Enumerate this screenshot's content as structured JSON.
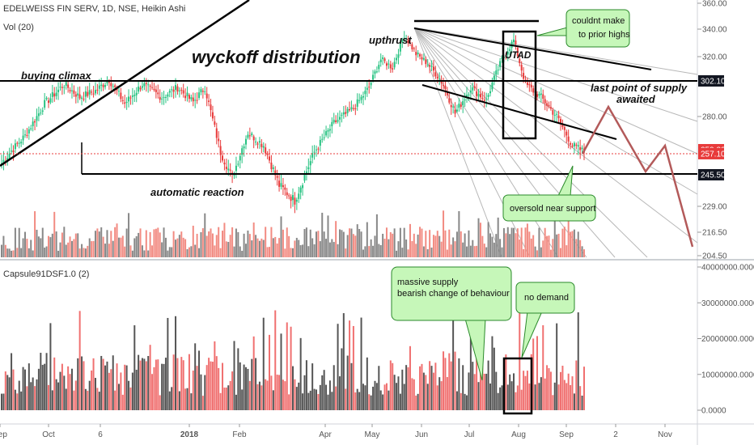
{
  "header": {
    "main_title": "EDELWEISS FIN SERV, 1D, NSE, Heikin Ashi",
    "volume_label": "Vol (20)",
    "indicator_label": "Capsule91DSF1.0 (2)"
  },
  "chart_data": {
    "type": "candlestick",
    "title": "EDELWEISS FIN SERV, 1D, NSE, Heikin Ashi",
    "price_axis": {
      "ticks": [
        "360.00",
        "340.00",
        "320.00",
        "280.00",
        "229.00",
        "216.50",
        "204.50"
      ],
      "tick_values": [
        360,
        340,
        320,
        280,
        229,
        216.5,
        204.5
      ],
      "range": [
        204.5,
        360
      ]
    },
    "price_labels": [
      {
        "text": "302.10",
        "value": 302.1,
        "style": "dark"
      },
      {
        "text": "259.30",
        "value": 259.3,
        "style": "red"
      },
      {
        "text": "257.10",
        "value": 257.1,
        "style": "red"
      },
      {
        "text": "245.50",
        "value": 245.5,
        "style": "dark"
      }
    ],
    "indicator_axis": {
      "ticks": [
        "40000000.0000",
        "30000000.0000",
        "20000000.0000",
        "10000000.0000",
        "0.0000"
      ],
      "tick_values": [
        40000000,
        30000000,
        20000000,
        10000000,
        0
      ],
      "range": [
        0,
        40000000
      ]
    },
    "time_axis": {
      "labels": [
        "Sep",
        "Oct",
        "6",
        "2018",
        "Feb",
        "Apr",
        "May",
        "Jun",
        "Jul",
        "Aug",
        "Sep",
        "2",
        "Nov"
      ],
      "label_bold": [
        false,
        false,
        false,
        true,
        false,
        false,
        false,
        false,
        false,
        false,
        false,
        false,
        false
      ]
    },
    "anchors": [
      {
        "t": 0,
        "c": 252
      },
      {
        "t": 12,
        "c": 268
      },
      {
        "t": 22,
        "c": 288
      },
      {
        "t": 32,
        "c": 300
      },
      {
        "t": 40,
        "c": 292
      },
      {
        "t": 48,
        "c": 296
      },
      {
        "t": 55,
        "c": 303
      },
      {
        "t": 63,
        "c": 288
      },
      {
        "t": 72,
        "c": 300
      },
      {
        "t": 82,
        "c": 292
      },
      {
        "t": 90,
        "c": 298
      },
      {
        "t": 98,
        "c": 289
      },
      {
        "t": 104,
        "c": 298
      },
      {
        "t": 112,
        "c": 258
      },
      {
        "t": 118,
        "c": 244
      },
      {
        "t": 126,
        "c": 270
      },
      {
        "t": 134,
        "c": 262
      },
      {
        "t": 142,
        "c": 240
      },
      {
        "t": 150,
        "c": 232
      },
      {
        "t": 160,
        "c": 258
      },
      {
        "t": 170,
        "c": 276
      },
      {
        "t": 180,
        "c": 285
      },
      {
        "t": 188,
        "c": 298
      },
      {
        "t": 194,
        "c": 318
      },
      {
        "t": 200,
        "c": 312
      },
      {
        "t": 206,
        "c": 336
      },
      {
        "t": 212,
        "c": 322
      },
      {
        "t": 218,
        "c": 315
      },
      {
        "t": 226,
        "c": 300
      },
      {
        "t": 232,
        "c": 282
      },
      {
        "t": 240,
        "c": 298
      },
      {
        "t": 248,
        "c": 290
      },
      {
        "t": 256,
        "c": 318
      },
      {
        "t": 262,
        "c": 332
      },
      {
        "t": 268,
        "c": 300
      },
      {
        "t": 276,
        "c": 292
      },
      {
        "t": 284,
        "c": 280
      },
      {
        "t": 292,
        "c": 262
      },
      {
        "t": 298,
        "c": 258
      }
    ],
    "annotations": {
      "buying_climax": "buying climax",
      "wyckoff_distribution": "wyckoff distribution",
      "upthrust": "upthrust",
      "utad": "UTAD",
      "automatic_reaction": "automatic reaction",
      "last_point_of_supply": "last point of supply",
      "awaited": "awaited"
    },
    "callouts": {
      "couldnt_line1": "couldnt make",
      "couldnt_line2": "to prior highs",
      "oversold": "oversold near support",
      "massive_line1": "massive supply",
      "massive_line2": "bearish change of behaviour",
      "no_demand": "no demand"
    },
    "colors": {
      "up": "#26c281",
      "down": "#e83b3b",
      "vol_up": "#888888",
      "vol_down": "#f28b82",
      "callout_fill": "#c6f7b9",
      "callout_border": "#2a8a2a",
      "label_dark": "#131722",
      "label_red": "#e83b3b"
    }
  }
}
